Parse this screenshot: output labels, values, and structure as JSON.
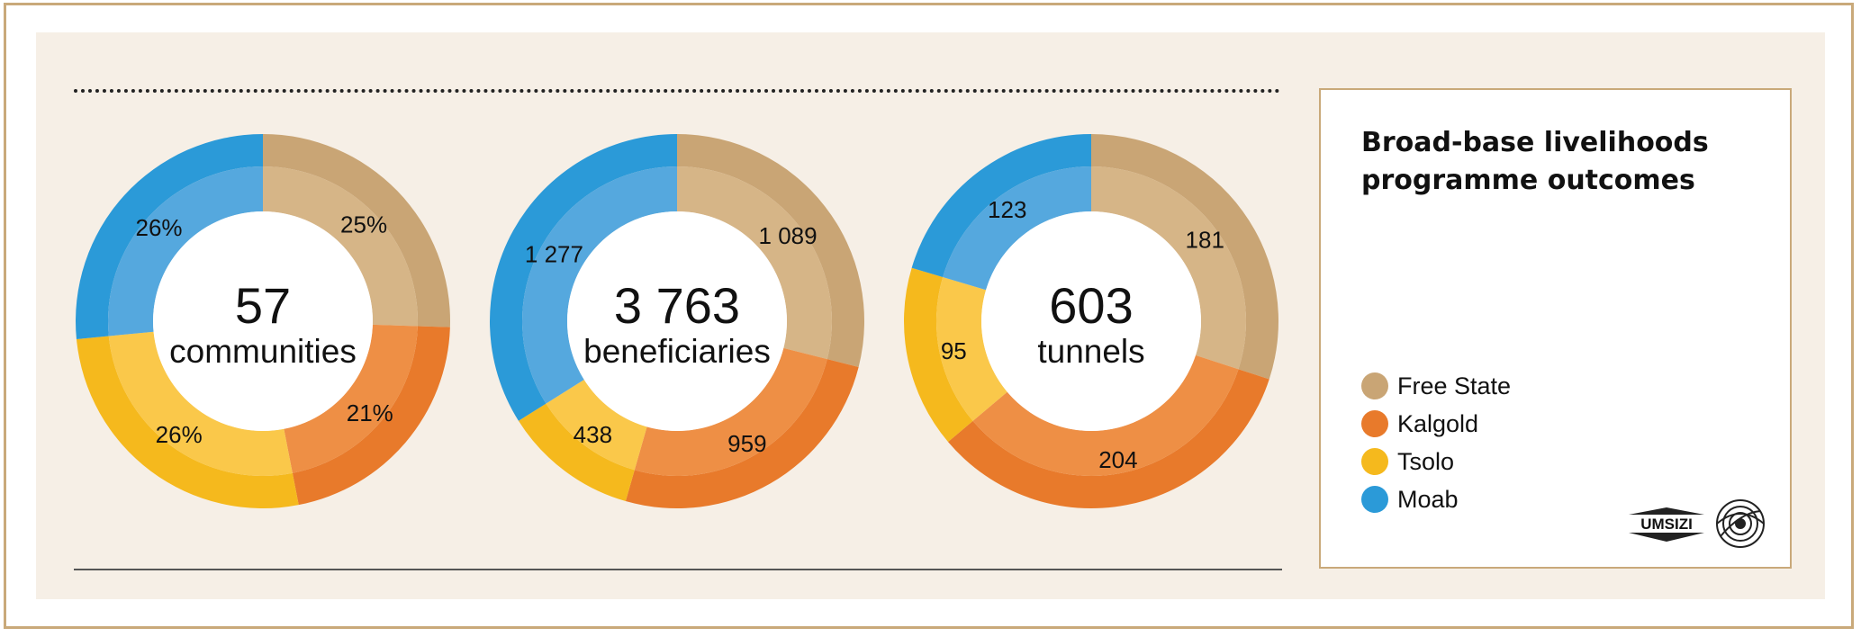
{
  "legend": {
    "title": "Broad-base livelihoods programme outcomes",
    "items": [
      {
        "label": "Free State",
        "color": "#c9a575"
      },
      {
        "label": "Kalgold",
        "color": "#e87a2b"
      },
      {
        "label": "Tsolo",
        "color": "#f5b91d"
      },
      {
        "label": "Moab",
        "color": "#2b9ad8"
      }
    ]
  },
  "logo": {
    "text": "UMSIZI"
  },
  "chart_data": [
    {
      "type": "pie",
      "center_value": "57",
      "center_label": "communities",
      "categories": [
        "Free State",
        "Kalgold",
        "Tsolo",
        "Moab"
      ],
      "values": [
        25,
        21,
        26,
        26
      ],
      "labels": [
        "25%",
        "21%",
        "26%",
        "26%"
      ]
    },
    {
      "type": "pie",
      "center_value": "3 763",
      "center_label": "beneficiaries",
      "categories": [
        "Free State",
        "Kalgold",
        "Tsolo",
        "Moab"
      ],
      "values": [
        1089,
        959,
        438,
        1277
      ],
      "labels": [
        "1 089",
        "959",
        "438",
        "1 277"
      ]
    },
    {
      "type": "pie",
      "center_value": "603",
      "center_label": "tunnels",
      "categories": [
        "Free State",
        "Kalgold",
        "Tsolo",
        "Moab"
      ],
      "values": [
        181,
        204,
        95,
        123
      ],
      "labels": [
        "181",
        "204",
        "95",
        "123"
      ]
    }
  ]
}
